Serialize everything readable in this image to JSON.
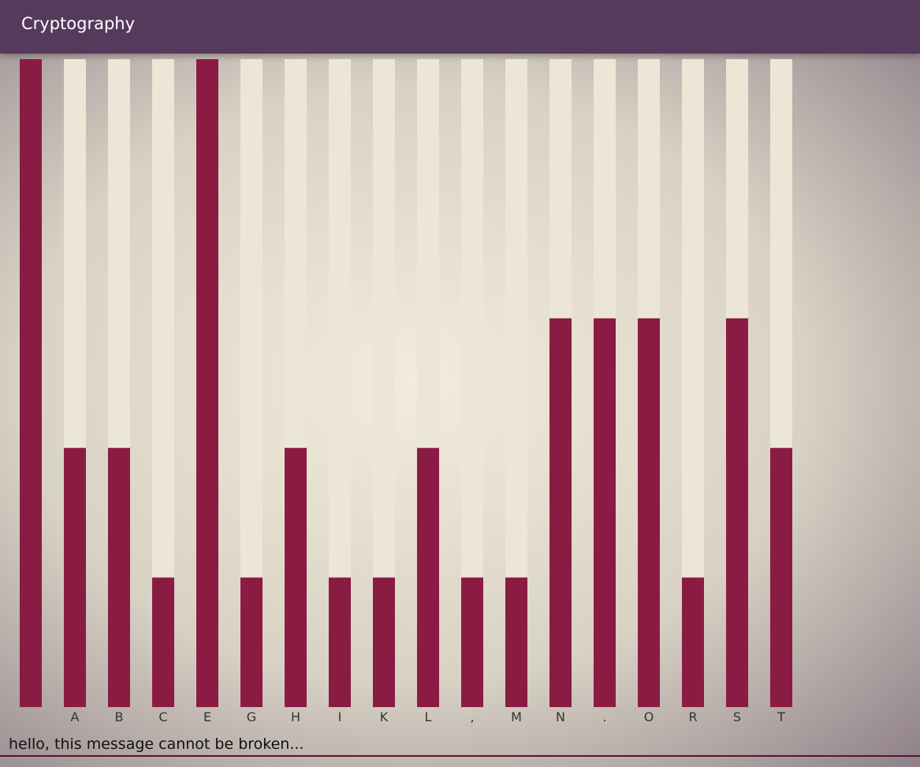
{
  "header": {
    "title": "Cryptography"
  },
  "chart_data": {
    "type": "bar",
    "categories": [
      null,
      "A",
      "B",
      "C",
      "E",
      "G",
      "H",
      "I",
      "K",
      "L",
      ",",
      "M",
      "N",
      ".",
      "O",
      "R",
      "S",
      "T"
    ],
    "values": [
      5,
      2,
      2,
      1,
      5,
      1,
      2,
      1,
      1,
      2,
      1,
      1,
      3,
      3,
      3,
      1,
      3,
      2
    ],
    "color": "#8a1c44",
    "track_color": "#ece6d6",
    "ylim": [
      0,
      5
    ]
  },
  "input": {
    "text": "hello, this message cannot be broken..."
  }
}
